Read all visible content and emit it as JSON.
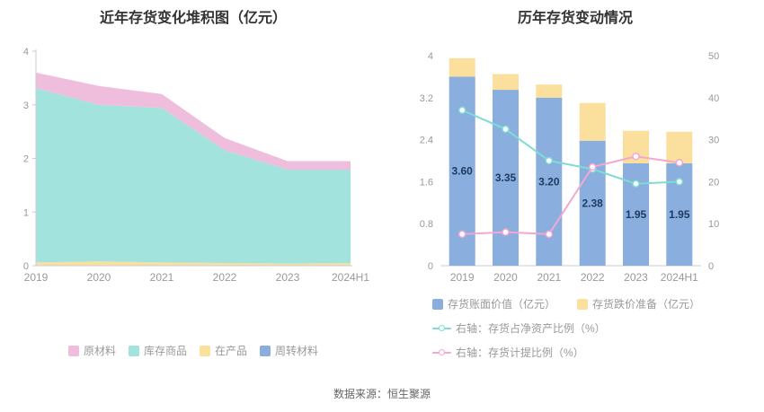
{
  "source": "数据来源：恒生聚源",
  "left_chart": {
    "title": "近年存货变化堆积图（亿元）"
  },
  "right_chart": {
    "title": "历年存货变动情况"
  },
  "chart_data": [
    {
      "type": "area",
      "stacked": true,
      "title": "近年存货变化堆积图（亿元）",
      "categories": [
        "2019",
        "2020",
        "2021",
        "2022",
        "2023",
        "2024H1"
      ],
      "series": [
        {
          "name": "周转材料",
          "color": "#8aaede",
          "values": [
            0.01,
            0.01,
            0.01,
            0.01,
            0.01,
            0.01
          ]
        },
        {
          "name": "在产品",
          "color": "#fbdf9d",
          "values": [
            0.05,
            0.07,
            0.05,
            0.04,
            0.03,
            0.04
          ]
        },
        {
          "name": "库存商品",
          "color": "#a2e3dd",
          "values": [
            3.25,
            2.92,
            2.88,
            2.1,
            1.75,
            1.74
          ]
        },
        {
          "name": "原材料",
          "color": "#f0bedd",
          "values": [
            0.29,
            0.35,
            0.26,
            0.23,
            0.16,
            0.16
          ]
        }
      ],
      "legend_order": [
        "原材料",
        "库存商品",
        "在产品",
        "周转材料"
      ],
      "ylim": [
        0,
        4
      ],
      "yticks": [
        0,
        1,
        2,
        3,
        4
      ],
      "xlabel": "",
      "ylabel": "",
      "grid": false,
      "legend_position": "bottom"
    },
    {
      "type": "bar",
      "title": "历年存货变动情况",
      "categories": [
        "2019",
        "2020",
        "2021",
        "2022",
        "2023",
        "2024H1"
      ],
      "bar_series": [
        {
          "name": "存货账面价值（亿元）",
          "color": "#8aaede",
          "values": [
            3.6,
            3.35,
            3.2,
            2.38,
            1.95,
            1.95
          ],
          "labels": [
            "3.60",
            "3.35",
            "3.20",
            "2.38",
            "1.95",
            "1.95"
          ]
        },
        {
          "name": "存货跌价准备（亿元）",
          "color": "#fbdf9d",
          "values": [
            0.35,
            0.3,
            0.25,
            0.72,
            0.62,
            0.6
          ]
        }
      ],
      "line_series": [
        {
          "name": "右轴：存货占净资产比例（%）",
          "color": "#7edcd3",
          "values": [
            37,
            32.5,
            25,
            23,
            19.5,
            20
          ]
        },
        {
          "name": "右轴：存货计提比例（%）",
          "color": "#f4a7d0",
          "values": [
            7.5,
            8,
            7.5,
            23.5,
            26,
            24.5
          ]
        }
      ],
      "left_ylim": [
        0,
        4
      ],
      "left_yticks": [
        0,
        0.8,
        1.6,
        2.4,
        3.2,
        4
      ],
      "right_ylim": [
        0,
        50
      ],
      "right_yticks": [
        0,
        10,
        20,
        30,
        40,
        50
      ],
      "value_label_color": "#1e3a5f",
      "grid": false,
      "legend_position": "bottom"
    }
  ]
}
